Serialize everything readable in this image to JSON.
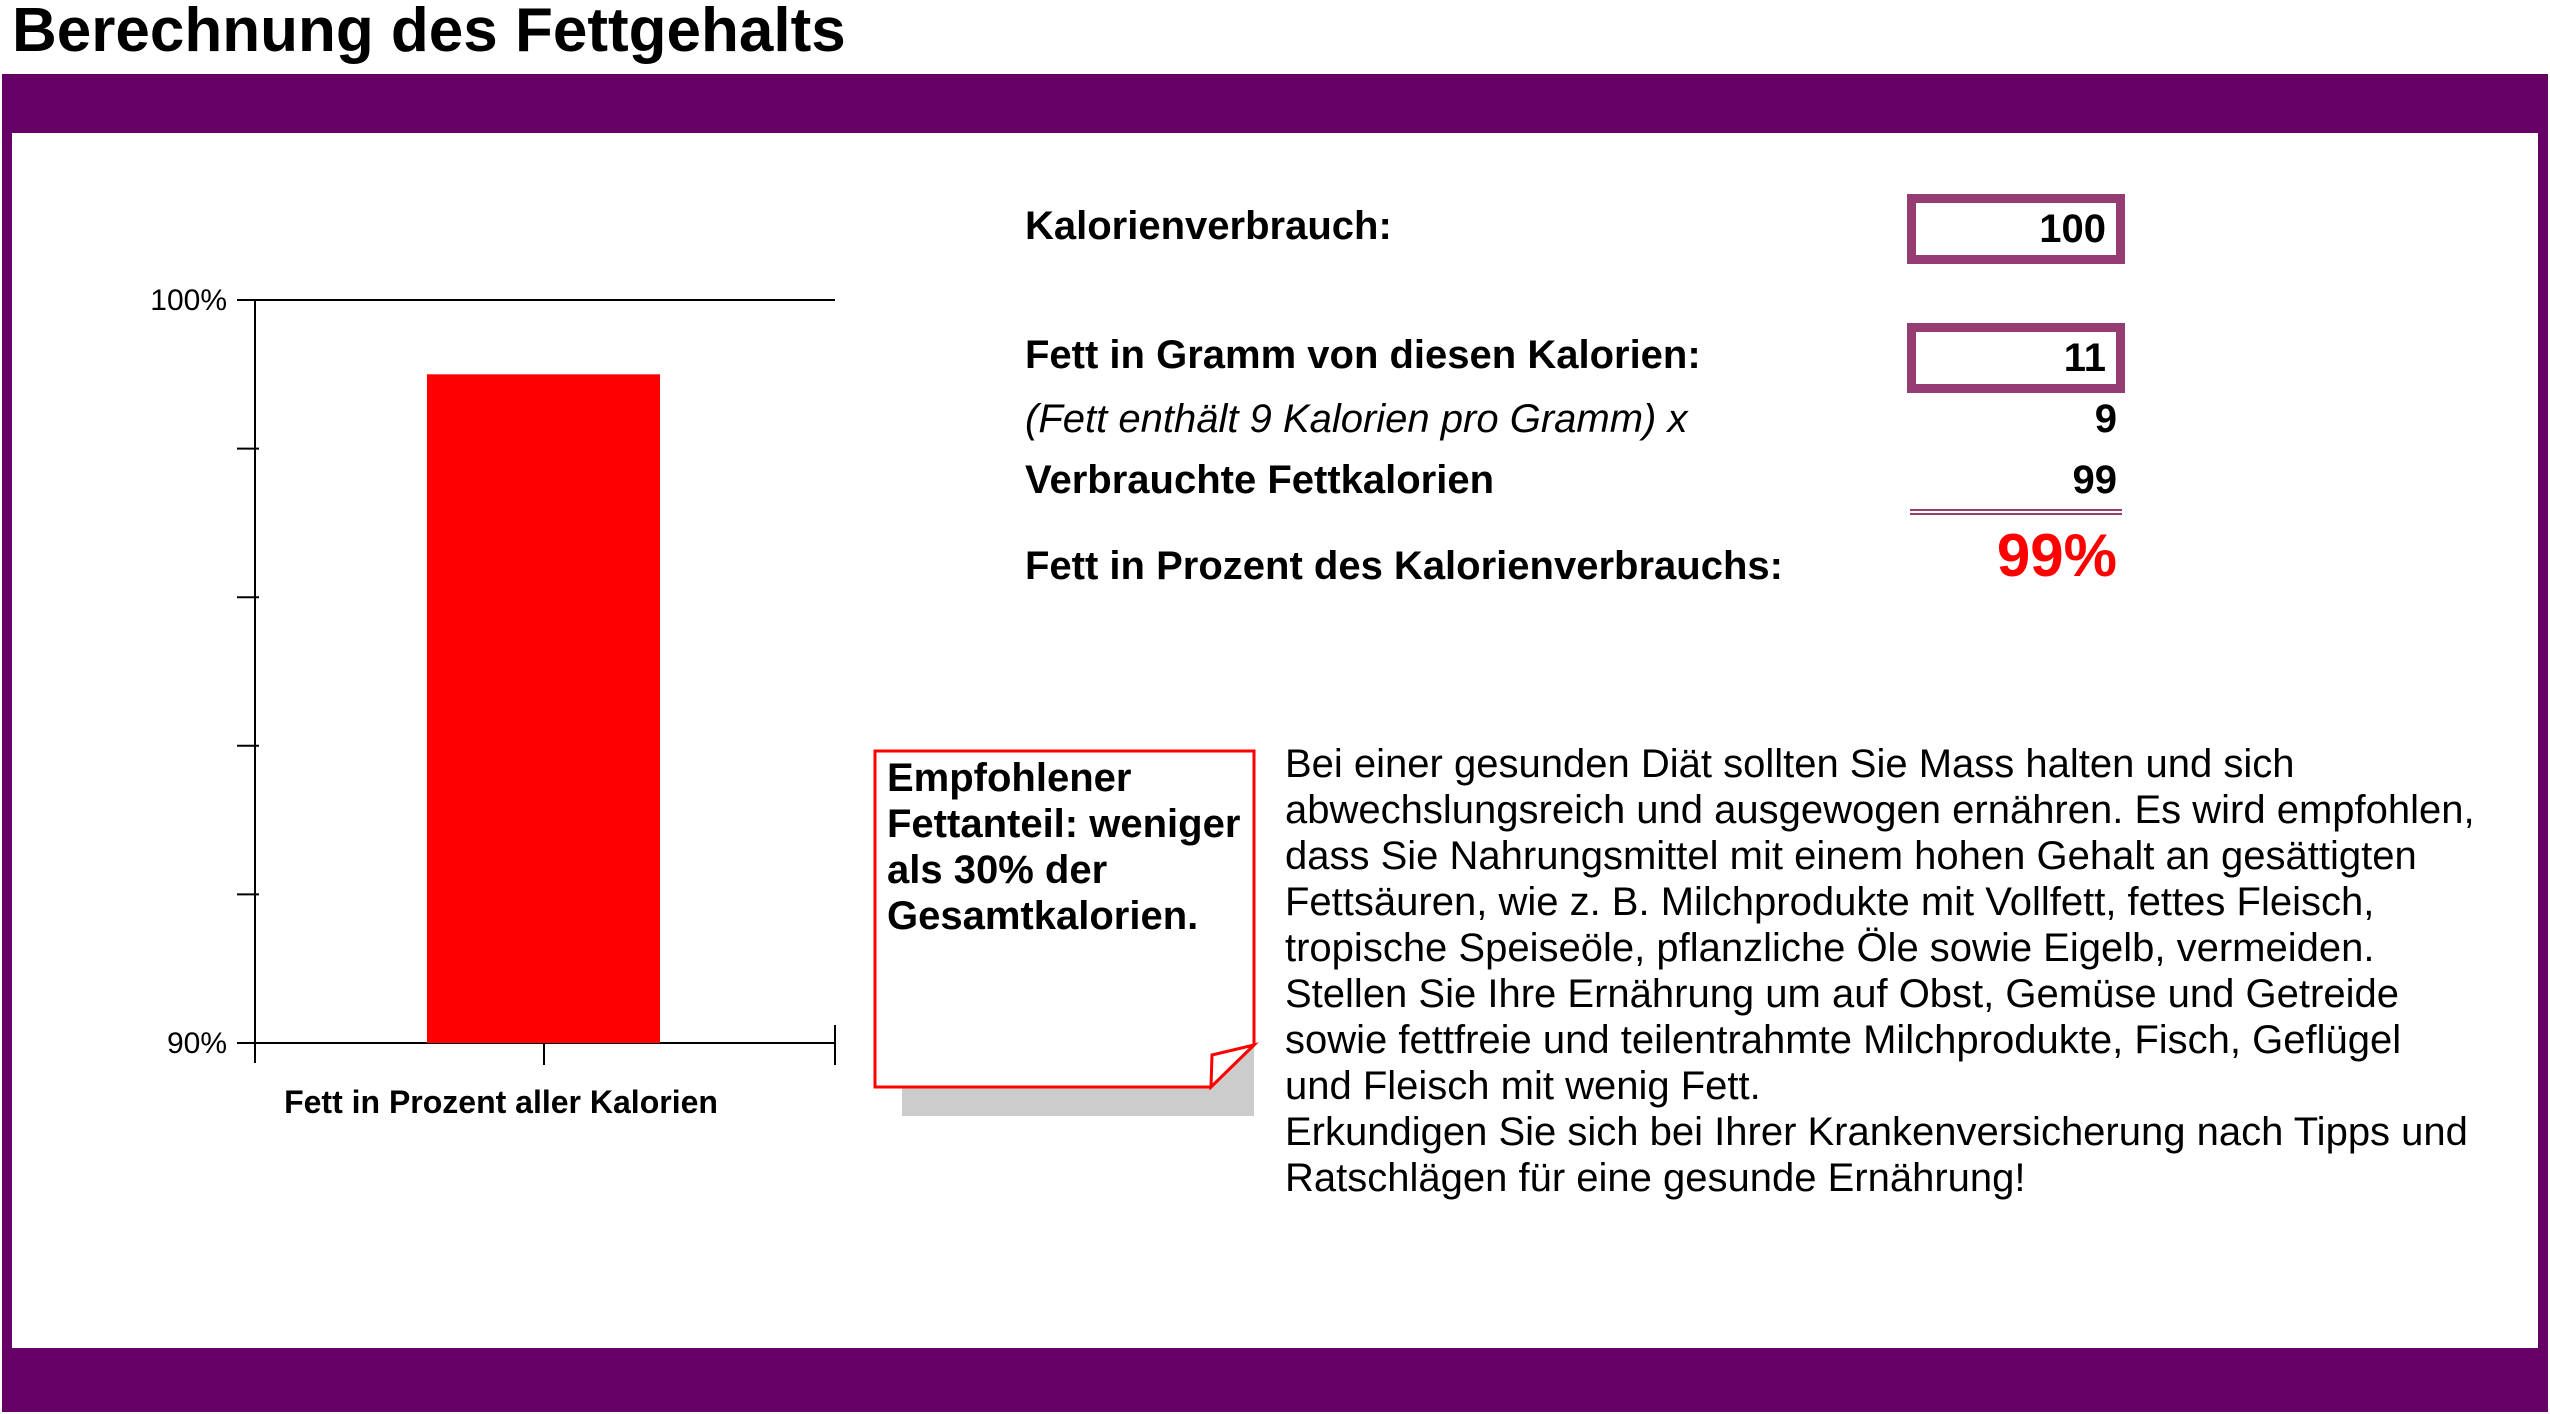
{
  "title": "Berechnung des Fettgehalts",
  "colors": {
    "frame": "#660066",
    "input_border": "#953c73",
    "bar": "#ff0000",
    "note_border": "#ff0000",
    "note_shadow": "#cccccc",
    "percent_text": "#ff0000"
  },
  "calculator": {
    "calories_label": "Kalorienverbrauch:",
    "calories_value": "100",
    "fat_grams_label": "Fett in Gramm von diesen Kalorien:",
    "fat_grams_value": "11",
    "fat_factor_label": "(Fett enthält 9 Kalorien pro Gramm) x",
    "fat_factor_value": "9",
    "fat_calories_label": "Verbrauchte Fettkalorien",
    "fat_calories_value": "99",
    "fat_percent_label": "Fett in Prozent des Kalorienverbrauchs:",
    "fat_percent_value": "99%"
  },
  "note": {
    "text": "Empfohlener Fettanteil: weniger als 30% der Gesamtkalorien."
  },
  "info": {
    "lines": [
      "Bei einer gesunden Diät sollten Sie Mass halten und sich",
      "abwechslungsreich und ausgewogen ernähren. Es wird empfohlen,",
      "dass Sie Nahrungsmittel mit einem hohen Gehalt an gesättigten",
      "Fettsäuren, wie z. B. Milchprodukte mit Vollfett, fettes Fleisch,",
      "tropische Speiseöle, pflanzliche Öle sowie Eigelb, vermeiden.",
      "Stellen Sie Ihre Ernährung um auf Obst, Gemüse und Getreide",
      "sowie fettfreie und teilentrahmte Milchprodukte, Fisch, Geflügel",
      "und Fleisch mit wenig Fett.",
      "Erkundigen Sie sich bei Ihrer Krankenversicherung nach Tipps und",
      "Ratschlägen für eine gesunde Ernährung!"
    ]
  },
  "chart_data": {
    "type": "bar",
    "categories": [
      "Fett in Prozent aller Kalorien"
    ],
    "values": [
      99
    ],
    "series": [
      {
        "values": [
          99
        ]
      }
    ],
    "title": "",
    "xlabel": "",
    "ylabel": "",
    "ylim": [
      90,
      100
    ],
    "y_ticks": [
      {
        "value": 90,
        "label": "90%"
      },
      {
        "value": 92,
        "label": ""
      },
      {
        "value": 94,
        "label": ""
      },
      {
        "value": 96,
        "label": ""
      },
      {
        "value": 98,
        "label": ""
      },
      {
        "value": 100,
        "label": "100%"
      }
    ],
    "grid": "top reference line only",
    "legend": "none",
    "bar_color": "#ff0000"
  }
}
